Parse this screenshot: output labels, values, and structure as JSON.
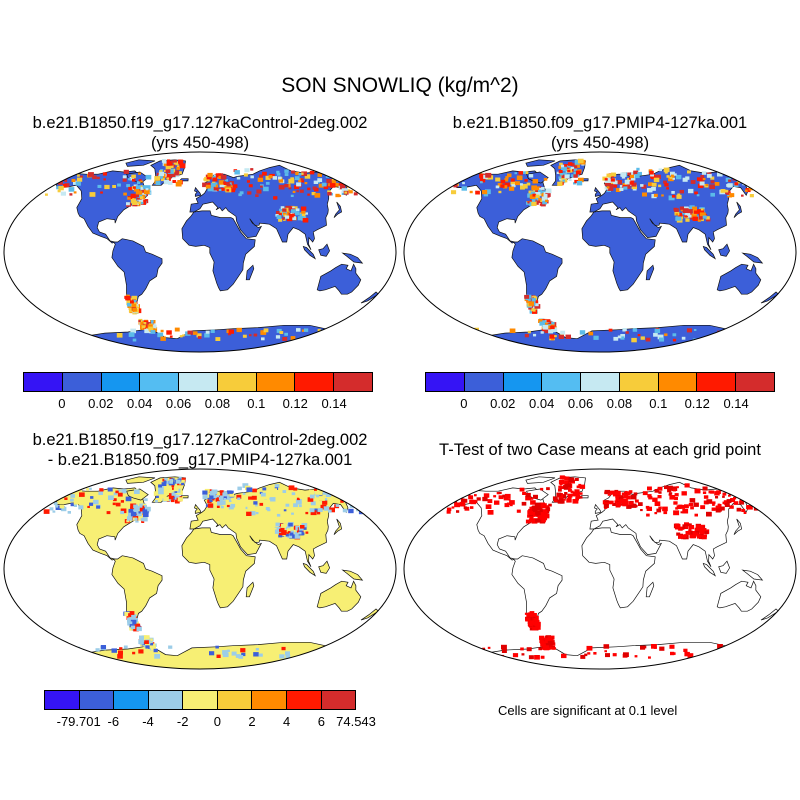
{
  "figure": {
    "title": "SON SNOWLIQ (kg/m^2)"
  },
  "panels": [
    {
      "id": "control",
      "title_lines": [
        "b.e21.B1850.f19_g17.127kaControl-2deg.002",
        "(yrs 450-498)"
      ],
      "land_color": "#3c5fd9",
      "snow_palette": [
        "#c6e9f2",
        "#f7cc3a",
        "#ff8a00",
        "#ff1a00",
        "#d42c2c",
        "#5bbbe9"
      ]
    },
    {
      "id": "pmip4",
      "title_lines": [
        "b.e21.B1850.f09_g17.PMIP4-127ka.001",
        "(yrs 450-498)"
      ],
      "land_color": "#3c5fd9",
      "snow_palette": [
        "#c6e9f2",
        "#f7cc3a",
        "#ff8a00",
        "#ff1a00",
        "#d42c2c",
        "#5bbbe9"
      ]
    },
    {
      "id": "difference",
      "title_lines": [
        "b.e21.B1850.f19_g17.127kaControl-2deg.002",
        "- b.e21.B1850.f09_g17.PMIP4-127ka.001"
      ],
      "land_color": "#f7ef74",
      "snow_palette": [
        "#9ccde8",
        "#9ccde8",
        "#f7ef74",
        "#ff1a00",
        "#3c5fd9"
      ]
    },
    {
      "id": "ttest",
      "title_lines": [
        "T-Test of two Case means at each grid point"
      ],
      "land_color": "#ffffff",
      "snow_palette": [
        "#ff0000",
        "#ff0000",
        "#e00000"
      ]
    }
  ],
  "colorbars": [
    {
      "id": "colorbar-top-left",
      "colors": [
        "#3514f5",
        "#3c5fd9",
        "#1596f0",
        "#54bdf2",
        "#c6e9f2",
        "#f7cc3a",
        "#ff8a00",
        "#ff1a00",
        "#d42c2c"
      ],
      "labels": [
        "0",
        "0.02",
        "0.04",
        "0.06",
        "0.08",
        "0.1",
        "0.12",
        "0.14"
      ]
    },
    {
      "id": "colorbar-top-right",
      "colors": [
        "#3514f5",
        "#3c5fd9",
        "#1596f0",
        "#54bdf2",
        "#c6e9f2",
        "#f7cc3a",
        "#ff8a00",
        "#ff1a00",
        "#d42c2c"
      ],
      "labels": [
        "0",
        "0.02",
        "0.04",
        "0.06",
        "0.08",
        "0.1",
        "0.12",
        "0.14"
      ]
    },
    {
      "id": "colorbar-difference",
      "colors": [
        "#3514f5",
        "#3c5fd9",
        "#1596f0",
        "#9ccde8",
        "#f7ef74",
        "#f7cc3a",
        "#ff8a00",
        "#ff1a00",
        "#d42c2c"
      ],
      "labels": [
        "-79.701",
        "-6",
        "-4",
        "-2",
        "0",
        "2",
        "4",
        "6",
        "74.543"
      ]
    }
  ],
  "ttest_note": "Cells are significant at 0.1 level"
}
